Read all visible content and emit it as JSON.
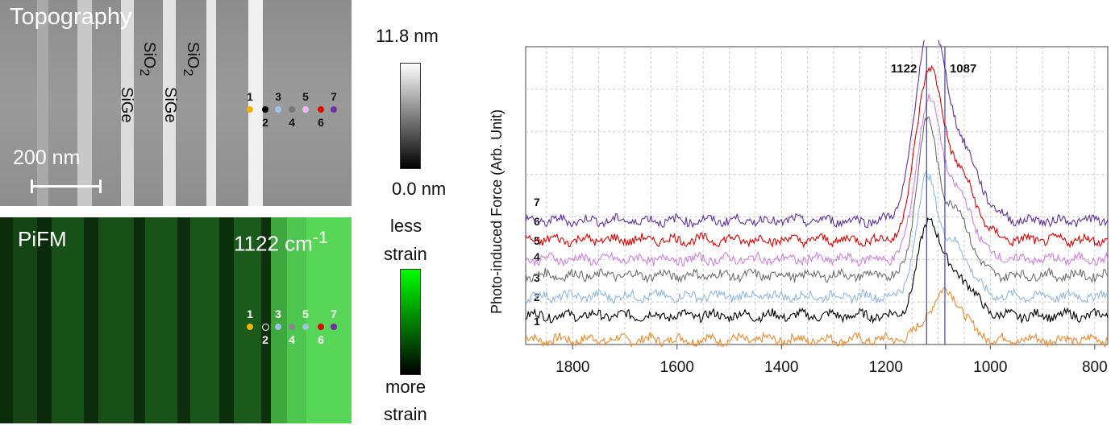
{
  "topography_panel": {
    "title": "Topography",
    "labels": [
      {
        "base": "SiO",
        "sub": "2"
      },
      {
        "base": "SiGe",
        "sub": ""
      },
      {
        "base": "SiGe",
        "sub": ""
      },
      {
        "base": "SiO",
        "sub": "2"
      }
    ],
    "scale_bar": "200 nm",
    "points": [
      {
        "id": "1",
        "color": "#f2b400",
        "hollow": false
      },
      {
        "id": "2",
        "color": "#000000",
        "hollow": false
      },
      {
        "id": "3",
        "color": "#9ec3e6",
        "hollow": false
      },
      {
        "id": "4",
        "color": "#777777",
        "hollow": false
      },
      {
        "id": "5",
        "color": "#f4b6f2",
        "hollow": false
      },
      {
        "id": "6",
        "color": "#e00000",
        "hollow": false
      },
      {
        "id": "7",
        "color": "#7030a0",
        "hollow": false
      }
    ]
  },
  "pifm_panel": {
    "title": "PiFM",
    "wavenumber": "1122 cm",
    "wavenumber_sup": "-1",
    "points": [
      {
        "id": "1",
        "color": "#f2b400",
        "hollow": false
      },
      {
        "id": "2",
        "color": "#ffffff",
        "hollow": true
      },
      {
        "id": "3",
        "color": "#9ec3e6",
        "hollow": false
      },
      {
        "id": "4",
        "color": "#888888",
        "hollow": false
      },
      {
        "id": "5",
        "color": "#9ec3e6",
        "hollow": false
      },
      {
        "id": "6",
        "color": "#e00000",
        "hollow": false
      },
      {
        "id": "7",
        "color": "#7030a0",
        "hollow": false
      }
    ]
  },
  "colorbar_topography": {
    "max_label": "11.8 nm",
    "min_label": "0.0 nm"
  },
  "colorbar_pifm": {
    "top_label_1": "less",
    "top_label_2": "strain",
    "bottom_label_1": "more",
    "bottom_label_2": "strain"
  },
  "chart_data": {
    "type": "line",
    "ylabel": "Photo-induced Force (Arb. Unit)",
    "xlabel": "",
    "xlim": [
      1890,
      775
    ],
    "x_reversed": true,
    "x_ticks": [
      1800,
      1600,
      1400,
      1200,
      1000,
      800
    ],
    "grid": true,
    "annotations": [
      {
        "text": "1122",
        "x": 1122
      },
      {
        "text": "1087",
        "x": 1087
      }
    ],
    "vertical_lines": [
      1122,
      1087
    ],
    "series": [
      {
        "name": "1",
        "color": "#f0882a",
        "baseline": 0.6,
        "peak_x": 1085,
        "peak_h": 6,
        "peak_w": 45
      },
      {
        "name": "2",
        "color": "#000000",
        "baseline": 3.6,
        "peak_x": 1118,
        "peak_h": 11,
        "peak_w": 30
      },
      {
        "name": "3",
        "color": "#8fb8e2",
        "baseline": 6.0,
        "peak_x": 1122,
        "peak_h": 14,
        "peak_w": 28
      },
      {
        "name": "4",
        "color": "#707070",
        "baseline": 8.6,
        "peak_x": 1122,
        "peak_h": 18,
        "peak_w": 28
      },
      {
        "name": "5",
        "color": "#d080e0",
        "baseline": 10.6,
        "peak_x": 1120,
        "peak_h": 18,
        "peak_w": 32
      },
      {
        "name": "6",
        "color": "#e00000",
        "baseline": 13.0,
        "peak_x": 1120,
        "peak_h": 19,
        "peak_w": 34
      },
      {
        "name": "7",
        "color": "#6030a0",
        "baseline": 15.4,
        "peak_x": 1118,
        "peak_h": 21,
        "peak_w": 38
      }
    ],
    "y_range": [
      0,
      37
    ]
  }
}
